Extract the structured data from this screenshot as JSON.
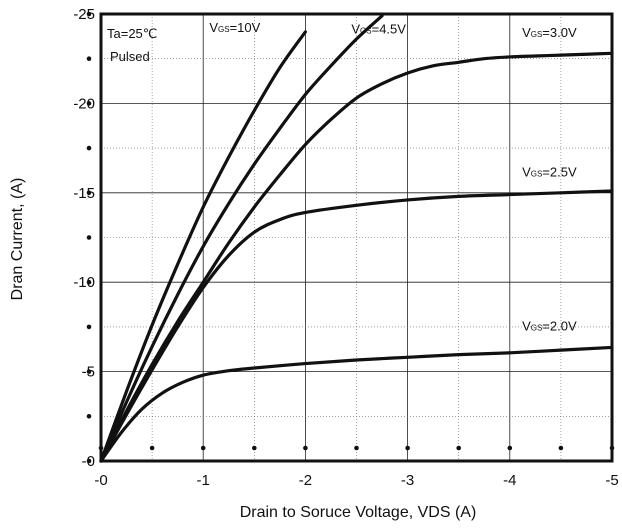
{
  "chart_data": {
    "type": "line",
    "xlabel": "Drain to Soruce Voltage, VDS (A)",
    "ylabel": "Dran Current, (A)",
    "xlim": [
      0,
      5
    ],
    "ylim": [
      0,
      25
    ],
    "x_ticks": [
      {
        "value": 0,
        "label": "-0"
      },
      {
        "value": 1,
        "label": "-1"
      },
      {
        "value": 2,
        "label": "-2"
      },
      {
        "value": 3,
        "label": "-3"
      },
      {
        "value": 4,
        "label": "-4"
      },
      {
        "value": 5,
        "label": "-5"
      }
    ],
    "y_ticks": [
      {
        "value": 0,
        "label": "-0"
      },
      {
        "value": 5,
        "label": "-5"
      },
      {
        "value": 10,
        "label": "-10"
      },
      {
        "value": 15,
        "label": "-15"
      },
      {
        "value": 20,
        "label": "-20"
      },
      {
        "value": 25,
        "label": "-25"
      }
    ],
    "grid": "dotted",
    "annotations": [
      "Ta=25℃",
      "Pulsed"
    ],
    "series": [
      {
        "label_main": "V",
        "label_sub": "GS",
        "label_rest": "=10V",
        "label_at": [
          1.06,
          24.0
        ],
        "x": [
          0,
          0.25,
          0.5,
          0.75,
          1.0,
          1.25,
          1.5,
          1.75,
          2.0
        ],
        "y": [
          0,
          3.9,
          7.6,
          11.0,
          14.2,
          17.0,
          19.6,
          22.0,
          24.0
        ]
      },
      {
        "label_main": "V",
        "label_sub": "GS",
        "label_rest": "=4.5V",
        "label_at": [
          2.45,
          23.9
        ],
        "x": [
          0,
          0.25,
          0.5,
          0.75,
          1.0,
          1.25,
          1.5,
          1.75,
          2.0,
          2.25,
          2.5,
          2.75
        ],
        "y": [
          0,
          3.3,
          6.4,
          9.3,
          12.0,
          14.4,
          16.6,
          18.6,
          20.5,
          22.1,
          23.6,
          24.9
        ]
      },
      {
        "label_main": "V",
        "label_sub": "GS",
        "label_rest": "=3.0V",
        "label_at": [
          4.12,
          23.7
        ],
        "x": [
          0,
          0.25,
          0.5,
          0.75,
          1.0,
          1.25,
          1.5,
          1.75,
          2.0,
          2.25,
          2.5,
          2.75,
          3.0,
          3.25,
          3.5,
          3.75,
          4.0,
          4.25,
          4.5,
          4.75,
          5.0
        ],
        "y": [
          0,
          2.8,
          5.4,
          7.8,
          10.0,
          12.2,
          14.2,
          16.0,
          17.7,
          19.1,
          20.3,
          21.1,
          21.7,
          22.1,
          22.3,
          22.5,
          22.6,
          22.65,
          22.7,
          22.75,
          22.8
        ]
      },
      {
        "label_main": "V",
        "label_sub": "GS",
        "label_rest": "=2.5V",
        "label_at": [
          4.12,
          15.9
        ],
        "x": [
          0,
          0.25,
          0.5,
          0.75,
          1.0,
          1.25,
          1.5,
          1.75,
          2.0,
          2.5,
          3.0,
          3.5,
          4.0,
          4.5,
          5.0
        ],
        "y": [
          0,
          2.6,
          5.1,
          7.5,
          9.7,
          11.5,
          12.8,
          13.5,
          13.9,
          14.3,
          14.6,
          14.8,
          14.9,
          15.0,
          15.1
        ]
      },
      {
        "label_main": "V",
        "label_sub": "GS",
        "label_rest": "=2.0V",
        "label_at": [
          4.12,
          7.3
        ],
        "x": [
          0,
          0.2,
          0.4,
          0.6,
          0.8,
          1.0,
          1.25,
          1.5,
          2.0,
          2.5,
          3.0,
          3.5,
          4.0,
          4.5,
          5.0
        ],
        "y": [
          0,
          1.6,
          2.9,
          3.8,
          4.4,
          4.8,
          5.05,
          5.2,
          5.45,
          5.65,
          5.8,
          5.95,
          6.05,
          6.2,
          6.35
        ]
      }
    ]
  }
}
